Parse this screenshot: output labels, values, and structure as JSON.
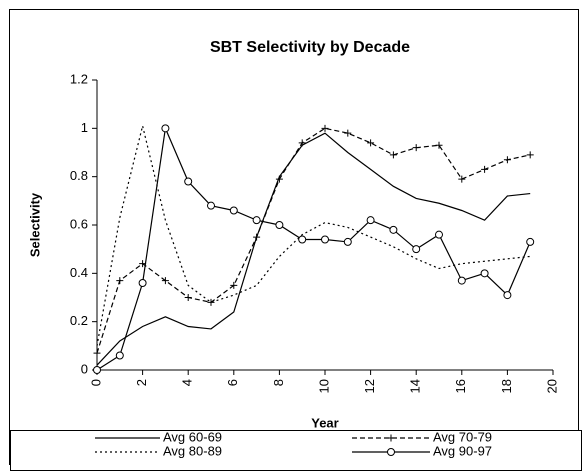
{
  "chart_data": {
    "type": "line",
    "title": "SBT Selectivity  by Decade",
    "x_label": "Year",
    "y_label": "Selectivity",
    "x": [
      0,
      1,
      2,
      3,
      4,
      5,
      6,
      7,
      8,
      9,
      10,
      11,
      12,
      13,
      14,
      15,
      16,
      17,
      18,
      19
    ],
    "xlim": [
      0,
      20
    ],
    "xticks": [
      0,
      2,
      4,
      6,
      8,
      10,
      12,
      14,
      16,
      18,
      20
    ],
    "ylim": [
      0,
      1.2
    ],
    "yticks": [
      0,
      0.2,
      0.4,
      0.6,
      0.8,
      1,
      1.2
    ],
    "legend": "bottom",
    "series": [
      {
        "name": "Avg 60-69",
        "color": "#000000",
        "line": "solid",
        "marker": "none",
        "values": [
          0.02,
          0.12,
          0.18,
          0.22,
          0.18,
          0.17,
          0.24,
          0.55,
          0.8,
          0.93,
          0.98,
          0.9,
          0.83,
          0.76,
          0.71,
          0.69,
          0.66,
          0.62,
          0.72,
          0.73
        ]
      },
      {
        "name": "Avg 70-79",
        "color": "#000000",
        "line": "dashed",
        "marker": "plus",
        "values": [
          0.07,
          0.37,
          0.44,
          0.37,
          0.3,
          0.28,
          0.35,
          0.55,
          0.79,
          0.94,
          1.0,
          0.98,
          0.94,
          0.89,
          0.92,
          0.93,
          0.79,
          0.83,
          0.87,
          0.89
        ]
      },
      {
        "name": "Avg 80-89",
        "color": "#000000",
        "line": "dotted",
        "marker": "none",
        "values": [
          0.1,
          0.63,
          1.01,
          0.62,
          0.35,
          0.28,
          0.31,
          0.35,
          0.47,
          0.56,
          0.61,
          0.59,
          0.55,
          0.51,
          0.46,
          0.42,
          0.44,
          0.45,
          0.46,
          0.47
        ]
      },
      {
        "name": "Avg 90-97",
        "color": "#000000",
        "line": "solid",
        "marker": "circle",
        "values": [
          0.0,
          0.06,
          0.36,
          1.0,
          0.78,
          0.68,
          0.66,
          0.62,
          0.6,
          0.54,
          0.54,
          0.53,
          0.62,
          0.58,
          0.5,
          0.56,
          0.37,
          0.4,
          0.31,
          0.53
        ]
      }
    ]
  }
}
